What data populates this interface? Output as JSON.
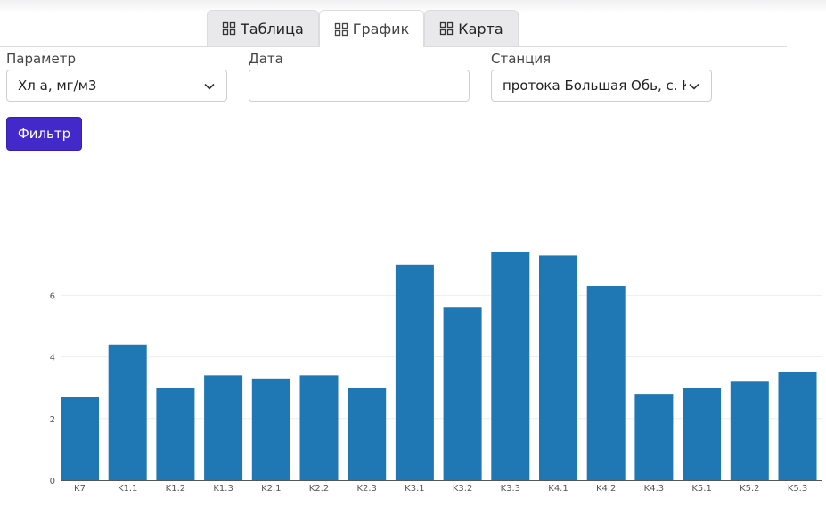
{
  "tabs": [
    {
      "label": "Таблица",
      "active": false
    },
    {
      "label": "График",
      "active": true
    },
    {
      "label": "Карта",
      "active": false
    }
  ],
  "filters": {
    "parameter": {
      "label": "Параметр",
      "value": "Хл a, мг/м3"
    },
    "date": {
      "label": "Дата",
      "value": ""
    },
    "station": {
      "label": "Станция",
      "value": "протока Большая Обь, с. К"
    }
  },
  "filter_button": "Фильтр",
  "colors": {
    "bar": "#1f77b4",
    "accent": "#4329c9"
  },
  "chart_data": {
    "type": "bar",
    "categories": [
      "K7",
      "K1.1",
      "K1.2",
      "K1.3",
      "K2.1",
      "K2.2",
      "K2.3",
      "K3.1",
      "K3.2",
      "K3.3",
      "K4.1",
      "K4.2",
      "K4.3",
      "K5.1",
      "K5.2",
      "K5.3"
    ],
    "values": [
      2.7,
      4.4,
      3.0,
      3.4,
      3.3,
      3.4,
      3.0,
      7.0,
      5.6,
      7.4,
      7.3,
      6.3,
      2.8,
      3.0,
      3.2,
      3.5
    ],
    "yticks": [
      0,
      2,
      4,
      6
    ],
    "ylim": [
      0,
      8
    ],
    "grid": true,
    "title": "",
    "xlabel": "",
    "ylabel": ""
  }
}
